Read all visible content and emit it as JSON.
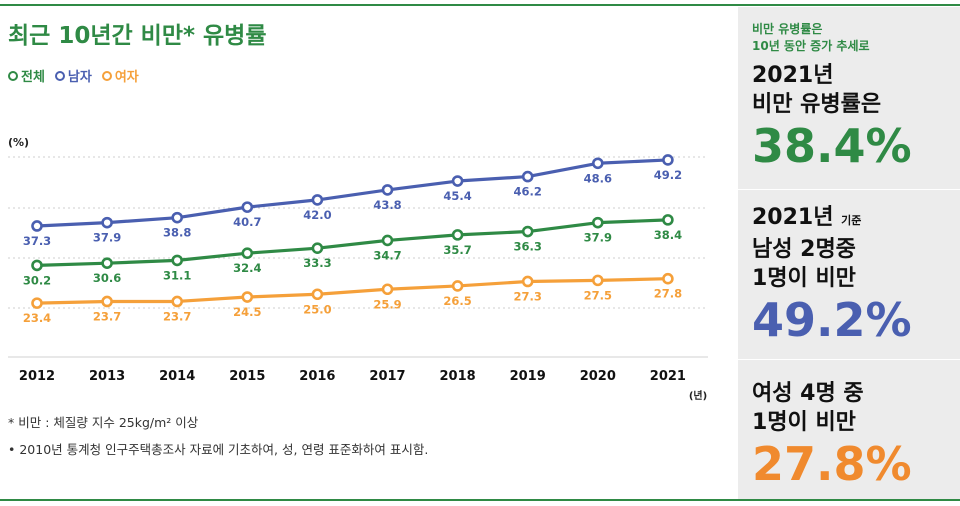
{
  "title": "최근 10년간 비만* 유병률",
  "legend": [
    {
      "label": "전체",
      "color": "#2f8a45"
    },
    {
      "label": "남자",
      "color": "#4a5fb0"
    },
    {
      "label": "여자",
      "color": "#f5a03a"
    }
  ],
  "chart_data": {
    "type": "line",
    "y_unit": "(%)",
    "x_unit": "(년)",
    "categories": [
      "2012",
      "2013",
      "2014",
      "2015",
      "2016",
      "2017",
      "2018",
      "2019",
      "2020",
      "2021"
    ],
    "series": [
      {
        "name": "남자",
        "color": "#4a5fb0",
        "values": [
          37.3,
          37.9,
          38.8,
          40.7,
          42.0,
          43.8,
          45.4,
          46.2,
          48.6,
          49.2
        ],
        "labels": [
          "37.3",
          "37.9",
          "38.8",
          "40.7",
          "42.0",
          "43.8",
          "45.4",
          "46.2",
          "48.6",
          "49.2"
        ]
      },
      {
        "name": "전체",
        "color": "#2f8a45",
        "values": [
          30.2,
          30.6,
          31.1,
          32.4,
          33.3,
          34.7,
          35.7,
          36.3,
          37.9,
          38.4
        ],
        "labels": [
          "30.2",
          "30.6",
          "31.1",
          "32.4",
          "33.3",
          "34.7",
          "35.7",
          "36.3",
          "37.9",
          "38.4"
        ]
      },
      {
        "name": "여자",
        "color": "#f5a03a",
        "values": [
          23.4,
          23.7,
          23.7,
          24.5,
          25.0,
          25.9,
          26.5,
          27.3,
          27.5,
          27.8
        ],
        "labels": [
          "23.4",
          "23.7",
          "23.7",
          "24.5",
          "25.0",
          "25.9",
          "26.5",
          "27.3",
          "27.5",
          "27.8"
        ]
      }
    ],
    "grid": true
  },
  "notes": {
    "definition": "* 비만 : 체질량 지수 25kg/m² 이상",
    "method": "• 2010년 통계청 인구주택총조사 자료에 기초하여, 성, 연령 표준화하여 표시함."
  },
  "sidebar": {
    "block1": {
      "sub1": "비만 유병률은",
      "sub2": "10년 동안 증가 추세로",
      "head1": "2021년",
      "head2": "비만 유병률은",
      "value": "38.4%",
      "color": "#2f8a45"
    },
    "block2": {
      "head1": "2021년",
      "tag": "기준",
      "head2": "남성 2명중",
      "head3": "1명이 비만",
      "value": "49.2%",
      "color": "#4a5fb0"
    },
    "block3": {
      "head1": "여성 4명 중",
      "head2": "1명이 비만",
      "value": "27.8%",
      "color": "#f08a2e"
    }
  }
}
